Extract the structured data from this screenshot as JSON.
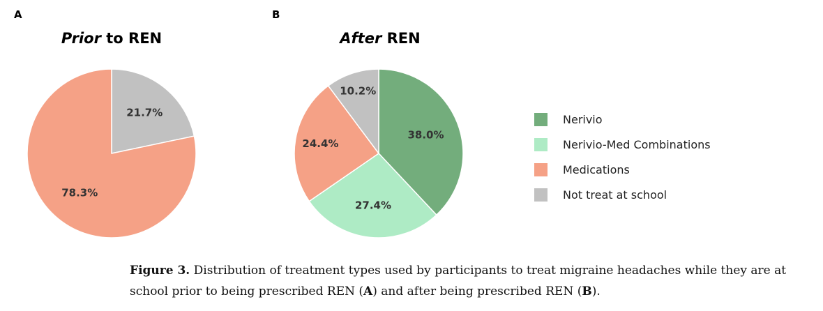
{
  "panels": [
    {
      "letter": "A",
      "title_italic": "Prior",
      "title_rest": " to REN"
    },
    {
      "letter": "B",
      "title_italic": "After",
      "title_rest": " REN"
    }
  ],
  "colors": {
    "Nerivio": "#73ad7c",
    "Nerivio-Med Combinations": "#aeebc5",
    "Medications": "#f5a186",
    "Not treat at school": "#c1c1c1"
  },
  "legend": [
    "Nerivio",
    "Nerivio-Med Combinations",
    "Medications",
    "Not treat at school"
  ],
  "chart_data": [
    {
      "type": "pie",
      "title": "Prior to REN",
      "categories": [
        "Not treat at school",
        "Medications"
      ],
      "values": [
        21.7,
        78.3
      ],
      "labels": [
        "21.7%",
        "78.3%"
      ]
    },
    {
      "type": "pie",
      "title": "After REN",
      "categories": [
        "Nerivio",
        "Nerivio-Med Combinations",
        "Medications",
        "Not treat at school"
      ],
      "values": [
        38.0,
        27.4,
        24.4,
        10.2
      ],
      "labels": [
        "38.0%",
        "27.4%",
        "24.4%",
        "10.2%"
      ]
    }
  ],
  "caption": {
    "label": "Figure 3.",
    "text_1": " Distribution of treatment types used by participants to treat migraine headaches while they are at school prior to being prescribed REN (",
    "ref_a": "A",
    "text_2": ") and after being prescribed REN (",
    "ref_b": "B",
    "text_3": ")."
  }
}
